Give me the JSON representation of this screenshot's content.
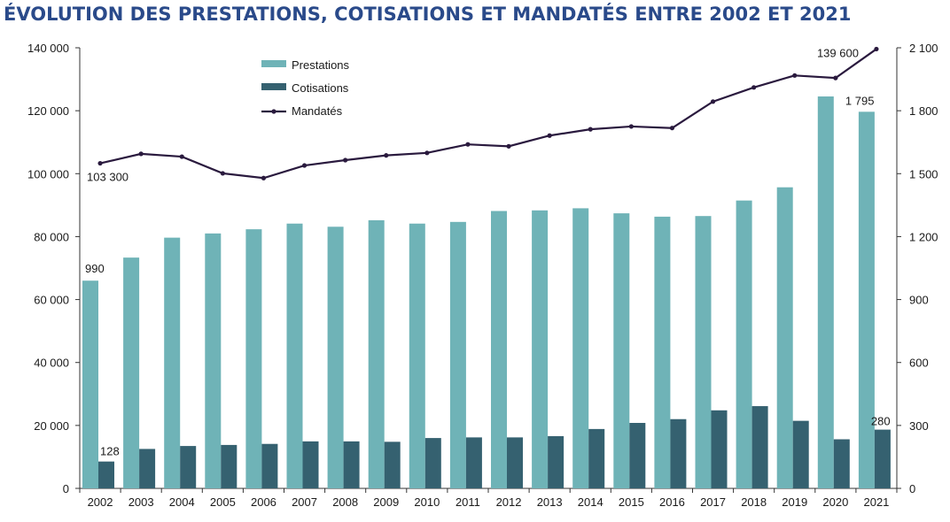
{
  "title": "ÉVOLUTION DES PRESTATIONS, COTISATIONS ET MANDATÉS ENTRE 2002 ET 2021",
  "colors": {
    "prestations": "#6fb3b7",
    "cotisations": "#356170",
    "mandates": "#2a1a3e",
    "title": "#2a4a8a"
  },
  "chart_data": {
    "type": "bar",
    "categories": [
      "2002",
      "2003",
      "2004",
      "2005",
      "2006",
      "2007",
      "2008",
      "2009",
      "2010",
      "2011",
      "2012",
      "2013",
      "2014",
      "2015",
      "2016",
      "2017",
      "2018",
      "2019",
      "2020",
      "2021"
    ],
    "series": [
      {
        "name": "Prestations",
        "axis": "right",
        "type": "bar",
        "values": [
          990,
          1100,
          1195,
          1215,
          1235,
          1262,
          1247,
          1278,
          1262,
          1270,
          1322,
          1325,
          1335,
          1311,
          1295,
          1298,
          1372,
          1435,
          1868,
          1795
        ]
      },
      {
        "name": "Cotisations",
        "axis": "right",
        "type": "bar",
        "values": [
          128,
          188,
          202,
          207,
          212,
          224,
          224,
          222,
          240,
          243,
          243,
          249,
          283,
          312,
          330,
          372,
          392,
          322,
          234,
          280
        ]
      },
      {
        "name": "Mandatés",
        "axis": "left",
        "type": "line",
        "values": [
          103300,
          106300,
          105400,
          100100,
          98600,
          102600,
          104300,
          105800,
          106600,
          109300,
          108700,
          112100,
          114100,
          115000,
          114500,
          122900,
          127400,
          131200,
          130400,
          139600
        ]
      }
    ],
    "left_axis": {
      "ylim": [
        0,
        140000
      ],
      "ticks": [
        "0",
        "20 000",
        "40 000",
        "60 000",
        "80 000",
        "100 000",
        "120 000",
        "140 000"
      ]
    },
    "right_axis": {
      "ylim": [
        0,
        2100
      ],
      "ticks": [
        "0",
        "300",
        "600",
        "900",
        "1 200",
        "1 500",
        "1 800",
        "2 100"
      ]
    },
    "data_labels": [
      "990",
      "128",
      "103 300",
      "139 600",
      "1 795",
      "280"
    ],
    "legend_placement": "top-left",
    "grid": false
  }
}
